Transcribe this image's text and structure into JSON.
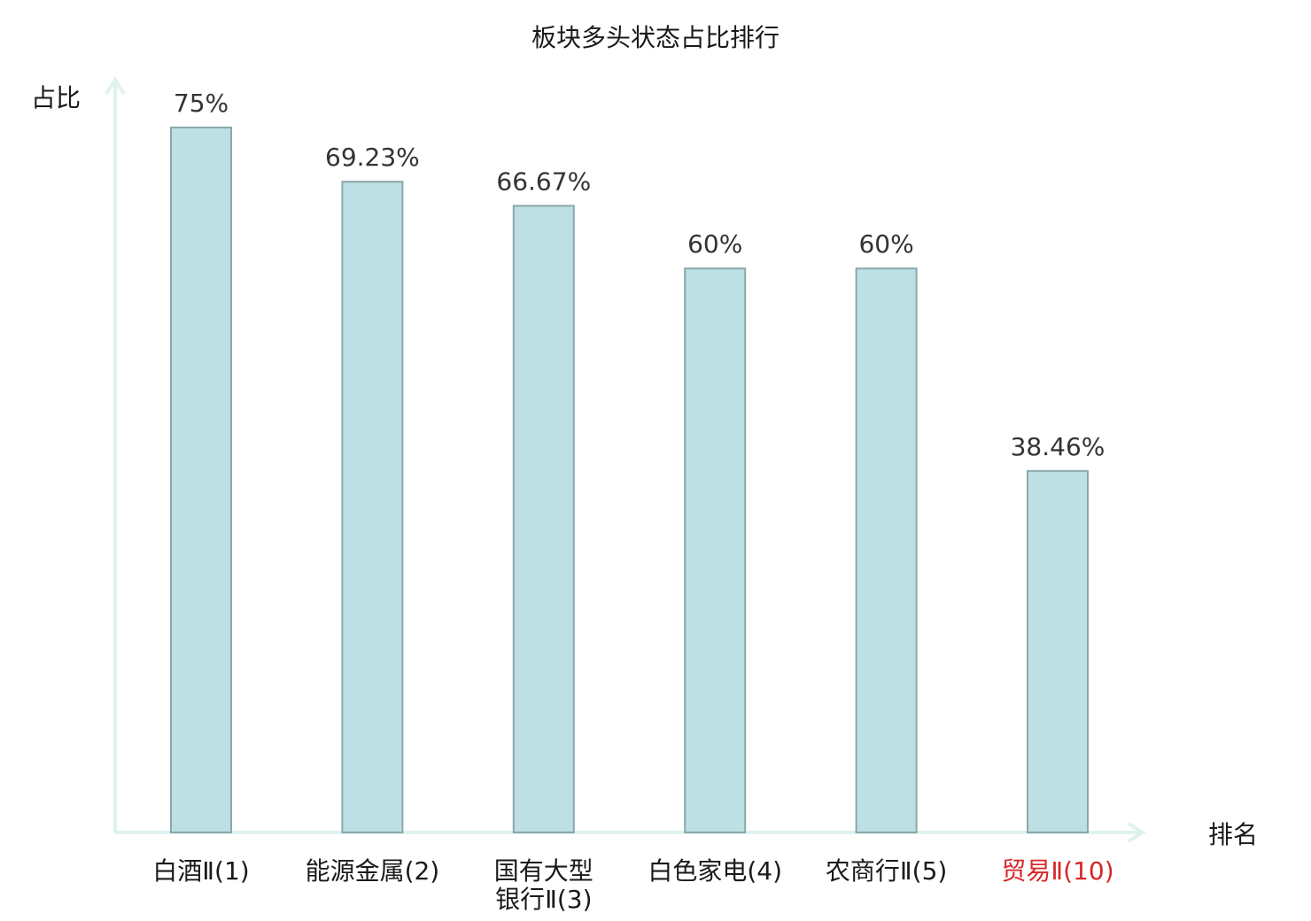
{
  "chart_data": {
    "type": "bar",
    "title": "板块多头状态占比排行",
    "xlabel": "排名",
    "ylabel": "占比",
    "ylim": [
      0,
      80
    ],
    "grid": false,
    "categories": [
      "白酒Ⅱ(1)",
      "能源金属(2)",
      "国有大型银行Ⅱ(3)",
      "白色家电(4)",
      "农商行Ⅱ(5)",
      "贸易Ⅱ(10)"
    ],
    "category_lines": [
      [
        "白酒Ⅱ(1)"
      ],
      [
        "能源金属(2)"
      ],
      [
        "国有大型",
        "银行Ⅱ(3)"
      ],
      [
        "白色家电(4)"
      ],
      [
        "农商行Ⅱ(5)"
      ],
      [
        "贸易Ⅱ(10)"
      ]
    ],
    "values": [
      75,
      69.23,
      66.67,
      60,
      60,
      38.46
    ],
    "value_labels": [
      "75%",
      "69.23%",
      "66.67%",
      "60%",
      "60%",
      "38.46%"
    ],
    "highlight_index": 5,
    "colors": {
      "bar_fill": "#bce0e3",
      "bar_stroke": "#8aa8ab",
      "axis": "#dff2f0",
      "label": "#1a1a1a",
      "highlight_label": "#d62728",
      "value_text": "#333333"
    }
  }
}
